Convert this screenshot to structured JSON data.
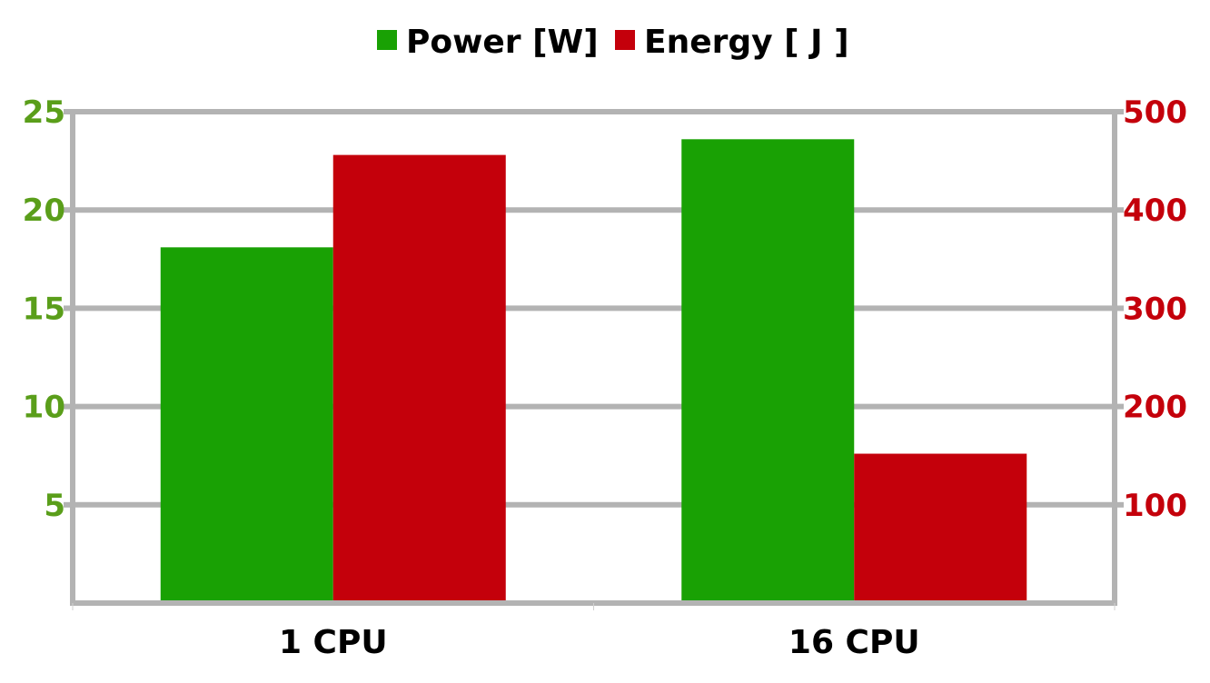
{
  "chart_data": {
    "type": "bar",
    "title": "",
    "categories": [
      "1 CPU",
      "16 CPU"
    ],
    "series": [
      {
        "name": "Power [W]",
        "values": [
          18.1,
          23.6
        ],
        "color": "#19a104",
        "axis": "left"
      },
      {
        "name": "Energy [ J ]",
        "values": [
          456,
          152
        ],
        "color": "#c4000b",
        "axis": "right"
      }
    ],
    "y_left": {
      "label": "",
      "ylim": [
        0,
        25
      ],
      "ticks": [
        5,
        10,
        15,
        20,
        25
      ],
      "tick_color": "#5a9e1a"
    },
    "y_right": {
      "label": "",
      "ylim": [
        0,
        500
      ],
      "ticks": [
        100,
        200,
        300,
        400,
        500
      ],
      "tick_color": "#c4000b"
    },
    "xlabel": "",
    "grid": true,
    "legend_position": "top-center"
  }
}
